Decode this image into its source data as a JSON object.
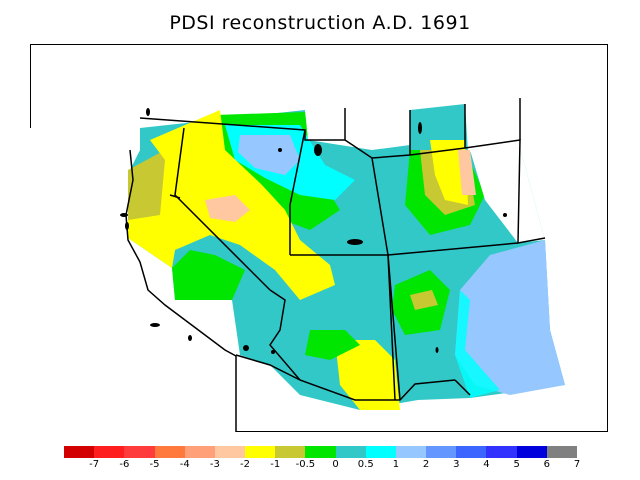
{
  "title": "PDSI reconstruction A.D. 1691",
  "legend": {
    "labels": [
      "-7",
      "-6",
      "-5",
      "-4",
      "-3",
      "-2",
      "-1",
      "-0.5",
      "0",
      "0.5",
      "1",
      "2",
      "3",
      "4",
      "5",
      "6",
      "7"
    ],
    "colors": [
      "#d20000",
      "#ff1e1e",
      "#ff3c3c",
      "#ff783c",
      "#ffa078",
      "#ffc8a0",
      "#ffff00",
      "#c8c832",
      "#00e600",
      "#32c8c8",
      "#00ffff",
      "#96c8ff",
      "#6496ff",
      "#3c64ff",
      "#3232ff",
      "#0000dc",
      "#808080"
    ]
  }
}
